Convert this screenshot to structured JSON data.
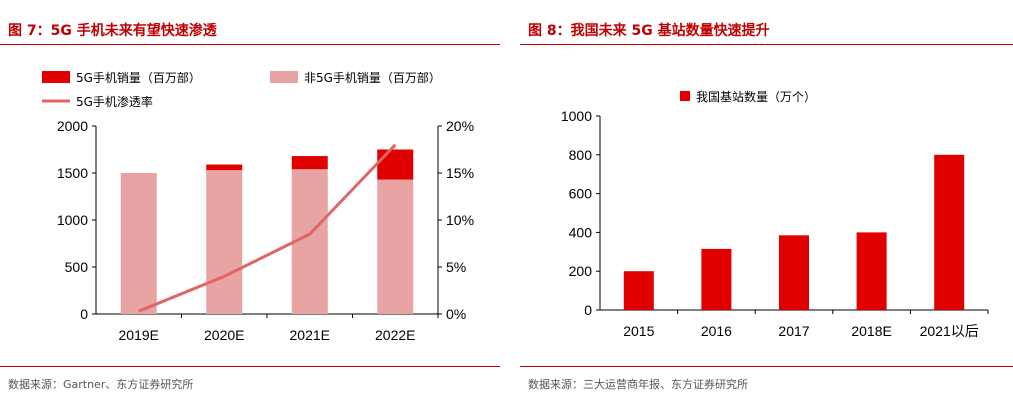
{
  "charts": [
    {
      "title": "图 7：5G 手机未来有望快速渗透",
      "source": "数据来源：Gartner、东方证券研究所",
      "chart_data": {
        "type": "bar",
        "stacked": true,
        "categories": [
          "2019E",
          "2020E",
          "2021E",
          "2022E"
        ],
        "series": [
          {
            "name": "非5G手机销量（百万部）",
            "type": "bar",
            "color": "#e8a3a3",
            "values": [
              1500,
              1530,
              1540,
              1430
            ]
          },
          {
            "name": "5G手机销量（百万部）",
            "type": "bar",
            "color": "#e00000",
            "values": [
              0,
              60,
              140,
              320
            ]
          },
          {
            "name": "5G手机渗透率",
            "type": "line",
            "axis": "right",
            "color": "#e06666",
            "values": [
              0.3,
              4.0,
              8.5,
              18.0
            ]
          }
        ],
        "ylim": [
          0,
          2000
        ],
        "yticks": [
          "0",
          "500",
          "1000",
          "1500",
          "2000"
        ],
        "y2lim": [
          0,
          20
        ],
        "y2ticks": [
          "0%",
          "5%",
          "10%",
          "15%",
          "20%"
        ],
        "legend_position": "top"
      }
    },
    {
      "title": "图 8：我国未来 5G 基站数量快速提升",
      "source": "数据来源：三大运营商年报、东方证券研究所",
      "chart_data": {
        "type": "bar",
        "categories": [
          "2015",
          "2016",
          "2017",
          "2018E",
          "2021以后"
        ],
        "series": [
          {
            "name": "我国基站数量（万个）",
            "color": "#e00000",
            "values": [
              200,
              315,
              385,
              400,
              800
            ]
          }
        ],
        "ylim": [
          0,
          1000
        ],
        "yticks": [
          "0",
          "200",
          "400",
          "600",
          "800",
          "1000"
        ],
        "legend_position": "top"
      }
    }
  ]
}
